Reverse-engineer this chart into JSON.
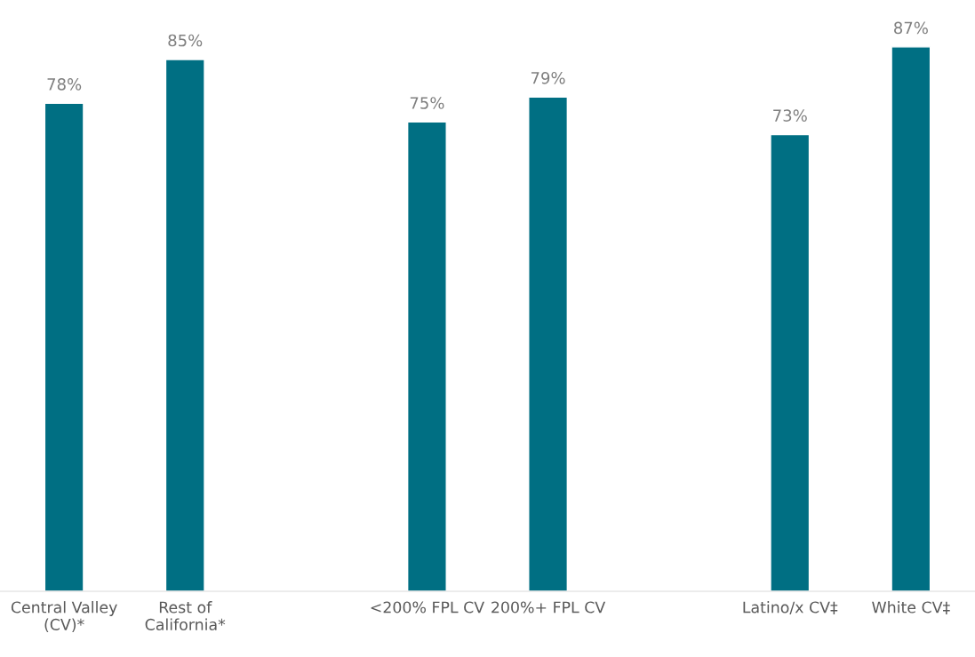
{
  "chart_data": {
    "type": "bar",
    "categories": [
      "Central Valley\n(CV)*",
      "Rest of\nCalifornia*",
      null,
      "<200% FPL CV",
      "200%+ FPL CV",
      null,
      "Latino/x CV‡",
      "White CV‡"
    ],
    "values": [
      78,
      85,
      null,
      75,
      79,
      null,
      73,
      87
    ],
    "value_labels": [
      "78%",
      "85%",
      null,
      "75%",
      "79%",
      null,
      "73%",
      "87%"
    ],
    "color": "#006f83",
    "grid": false
  }
}
